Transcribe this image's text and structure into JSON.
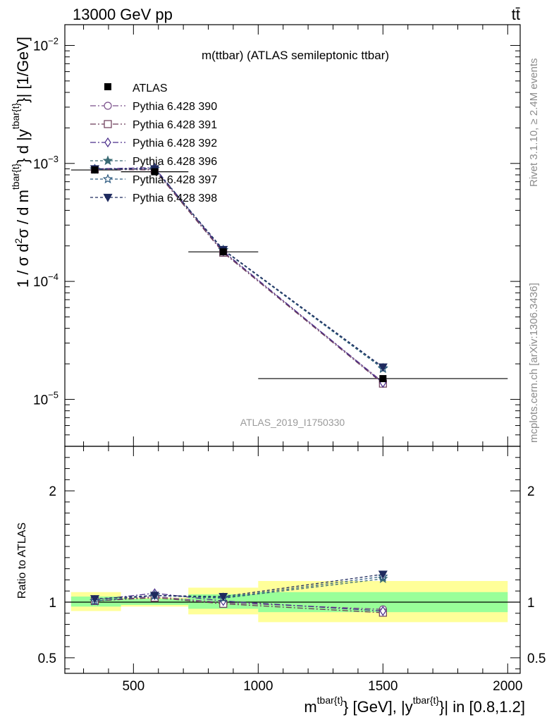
{
  "header": {
    "left": "13000 GeV pp",
    "right": "tt̄"
  },
  "side_labels": {
    "rivet": "Rivet 3.1.10, ≥ 2.4M events",
    "mcplots": "mcplots.cern.ch [arXiv:1306.3436]"
  },
  "chart_data": [
    {
      "type": "line",
      "title": "m(ttbar) (ATLAS semileptonic ttbar)",
      "analysis_label": "ATLAS_2019_I1750330",
      "ylabel": {
        "prefix": "1 / σ d",
        "sup1": "2",
        "mid1": "σ /  d m",
        "sup2": "tbar{t}",
        "mid2": "} d |y",
        "sup3": "tbar{t}",
        "end": "}| [1/GeV]"
      },
      "xlim": [
        225,
        2050
      ],
      "ylim": [
        4e-06,
        0.015
      ],
      "yscale": "log",
      "x_ticks": [
        500,
        1000,
        1500,
        2000
      ],
      "x_tick_labels": [
        "500",
        "1000",
        "1500",
        "2000"
      ],
      "y_ticks": [
        1e-05,
        0.0001,
        0.001,
        0.01
      ],
      "y_tick_labels": [
        {
          "base": "10",
          "exp": "−5"
        },
        {
          "base": "10",
          "exp": "−4"
        },
        {
          "base": "10",
          "exp": "−3"
        },
        {
          "base": "10",
          "exp": "−2"
        }
      ],
      "x": [
        345,
        585,
        860,
        1500
      ],
      "data": {
        "name": "ATLAS",
        "values": [
          0.00088,
          0.00085,
          0.000178,
          1.5e-05
        ],
        "xerr_bins": [
          [
            250,
            450
          ],
          [
            450,
            720
          ],
          [
            720,
            1000
          ],
          [
            1000,
            2000
          ]
        ]
      },
      "series": [
        {
          "name": "Pythia 6.428 390",
          "marker": "circle-open",
          "color": "#7a4f8a",
          "dash": "8,3,2,3",
          "values": [
            0.00089,
            0.00089,
            0.000177,
            1.4e-05
          ]
        },
        {
          "name": "Pythia 6.428 391",
          "marker": "square-open",
          "color": "#6a3a58",
          "dash": "8,3,2,3",
          "values": [
            0.00089,
            0.00088,
            0.000175,
            1.36e-05
          ]
        },
        {
          "name": "Pythia 6.428 392",
          "marker": "diamond-open",
          "color": "#4a2d8a",
          "dash": "8,3,2,3",
          "values": [
            0.0009,
            0.00092,
            0.00018,
            1.38e-05
          ]
        },
        {
          "name": "Pythia 6.428 396",
          "marker": "star-filled",
          "color": "#3a6b74",
          "dash": "4,3",
          "values": [
            0.00089,
            0.0009,
            0.000184,
            1.82e-05
          ]
        },
        {
          "name": "Pythia 6.428 397",
          "marker": "star-open",
          "color": "#2d5a80",
          "dash": "4,3",
          "values": [
            0.00089,
            0.0009,
            0.000185,
            1.84e-05
          ]
        },
        {
          "name": "Pythia 6.428 398",
          "marker": "triangle-down-filled",
          "color": "#1f2a5e",
          "dash": "4,3",
          "values": [
            0.0009,
            0.0009,
            0.000186,
            1.88e-05
          ]
        }
      ]
    },
    {
      "type": "line",
      "ylabel": "Ratio to ATLAS",
      "xlabel": {
        "m": "m",
        "sup1": "tbar{t}",
        "mid": "} [GeV], |y",
        "sup2": "tbar{t}",
        "end": "}| in [0.8,1.2]"
      },
      "xlim": [
        225,
        2050
      ],
      "ylim": [
        0.36,
        2.4
      ],
      "y_ticks": [
        0.5,
        1,
        2
      ],
      "y_tick_labels": [
        "0.5",
        "1",
        "2"
      ],
      "bands": [
        {
          "x": [
            250,
            450
          ],
          "inner": [
            0.96,
            1.05
          ],
          "outer": [
            0.92,
            1.09
          ]
        },
        {
          "x": [
            450,
            720
          ],
          "inner": [
            0.975,
            1.03
          ],
          "outer": [
            0.96,
            1.04
          ]
        },
        {
          "x": [
            720,
            1000
          ],
          "inner": [
            0.94,
            1.07
          ],
          "outer": [
            0.89,
            1.13
          ]
        },
        {
          "x": [
            1000,
            2000
          ],
          "inner": [
            0.91,
            1.09
          ],
          "outer": [
            0.82,
            1.19
          ]
        }
      ],
      "band_colors": {
        "inner": "#99ff99",
        "outer": "#ffff99"
      },
      "x": [
        345,
        585,
        860,
        1500
      ],
      "series": [
        {
          "name": "Pythia 6.428 390",
          "values": [
            1.01,
            1.05,
            0.995,
            0.935
          ]
        },
        {
          "name": "Pythia 6.428 391",
          "values": [
            1.01,
            1.04,
            0.985,
            0.905
          ]
        },
        {
          "name": "Pythia 6.428 392",
          "values": [
            1.02,
            1.08,
            1.01,
            0.92
          ]
        },
        {
          "name": "Pythia 6.428 396",
          "values": [
            1.01,
            1.06,
            1.035,
            1.21
          ]
        },
        {
          "name": "Pythia 6.428 397",
          "values": [
            1.01,
            1.06,
            1.04,
            1.23
          ]
        },
        {
          "name": "Pythia 6.428 398",
          "values": [
            1.03,
            1.06,
            1.05,
            1.25
          ]
        }
      ]
    }
  ]
}
